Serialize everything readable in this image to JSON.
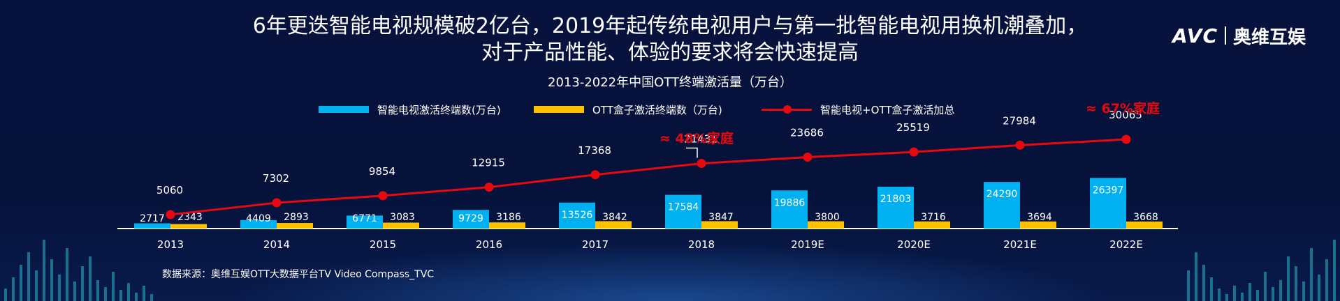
{
  "headline": {
    "line1": "6年更迭智能电视规模破2亿台，2019年起传统电视用户与第一批智能电视用换机潮叠加，",
    "line2": "对于产品性能、体验的要求将会快速提高"
  },
  "logo": {
    "mark": "AVC",
    "name": "奥维互娱"
  },
  "source": "数据来源：奥维互娱OTT大数据平台TV Video Compass_TVC",
  "colors": {
    "smart_tv": "#00b0f0",
    "ott_box": "#ffc000",
    "total_line": "#e8090e",
    "annotation": "#e8090e"
  },
  "chart_data": {
    "type": "bar",
    "title": "2013-2022年中国OTT终端激活量（万台）",
    "categories": [
      "2013",
      "2014",
      "2015",
      "2016",
      "2017",
      "2018",
      "2019E",
      "2020E",
      "2021E",
      "2022E"
    ],
    "series": [
      {
        "name": "智能电视激活终端数(万台)",
        "type": "bar",
        "values": [
          2717,
          4409,
          6771,
          9729,
          13526,
          17584,
          19886,
          21803,
          24290,
          26397
        ]
      },
      {
        "name": "OTT盒子激活终端数（万台)",
        "type": "bar",
        "values": [
          2343,
          2893,
          3083,
          3186,
          3842,
          3847,
          3800,
          3716,
          3694,
          3668
        ]
      },
      {
        "name": "智能电视+OTT盒子激活加总",
        "type": "line",
        "values": [
          5060,
          7302,
          9854,
          12915,
          17368,
          21431,
          23686,
          25519,
          27984,
          30065
        ]
      }
    ],
    "annotations": [
      {
        "text": "≈ 48%家庭",
        "category": "2018"
      },
      {
        "text": "≈ 67%家庭",
        "category": "2022E"
      }
    ],
    "legend_position": "top",
    "grid": false
  }
}
